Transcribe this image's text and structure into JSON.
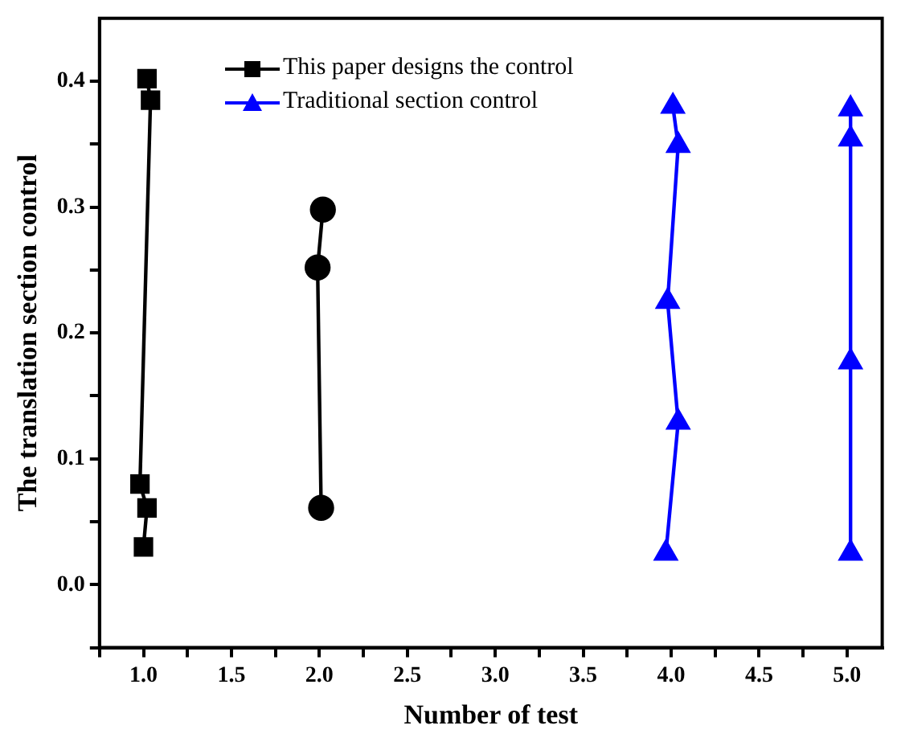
{
  "chart_data": {
    "type": "line",
    "xlabel": "Number of test",
    "ylabel": "The translation section control",
    "xlim": [
      0.75,
      5.2
    ],
    "ylim": [
      -0.05,
      0.45
    ],
    "xticks": [
      {
        "value": 0.75,
        "label": null
      },
      {
        "value": 1,
        "label": "1.0"
      },
      {
        "value": 1.25,
        "label": null
      },
      1.5,
      {
        "value": 1.75,
        "label": null
      },
      {
        "value": 2,
        "label": "2.0"
      },
      {
        "value": 2.25,
        "label": null
      },
      2.5,
      {
        "value": 2.75,
        "label": null
      },
      {
        "value": 3,
        "label": "3.0"
      },
      {
        "value": 3.25,
        "label": null
      },
      3.5,
      {
        "value": 3.75,
        "label": null
      },
      {
        "value": 4,
        "label": "4.0"
      },
      {
        "value": 4.25,
        "label": null
      },
      4.5,
      {
        "value": 4.75,
        "label": null
      },
      {
        "value": 5,
        "label": "5.0"
      }
    ],
    "yticks": [
      {
        "value": -0.05,
        "label": null
      },
      {
        "value": 0,
        "label": "0.0"
      },
      {
        "value": 0.05,
        "label": null
      },
      0.1,
      {
        "value": 0.15,
        "label": null
      },
      0.2,
      {
        "value": 0.25,
        "label": null
      },
      0.3,
      {
        "value": 0.35,
        "label": null
      },
      0.4
    ],
    "grid": false,
    "legend": "top left",
    "series": [
      {
        "name": "This paper designs the control",
        "color": "#000000",
        "marker": "square",
        "x": [
          1.02,
          1.04,
          0.98,
          1.02,
          1.0
        ],
        "values": [
          0.402,
          0.385,
          0.08,
          0.061,
          0.03
        ]
      },
      {
        "color": "#000000",
        "marker": "circle",
        "x": [
          2.02,
          1.99,
          2.01
        ],
        "values": [
          0.298,
          0.252,
          0.061
        ]
      },
      {
        "name": "Traditional section control",
        "color": "#0000ff",
        "marker": "triangle",
        "x": [
          4.01,
          4.04,
          3.98,
          4.04,
          3.97
        ],
        "values": [
          0.38,
          0.349,
          0.225,
          0.129,
          0.025
        ]
      },
      {
        "color": "#0000ff",
        "marker": "triangle",
        "x": [
          5.02,
          5.02,
          5.02,
          5.02
        ],
        "values": [
          0.378,
          0.354,
          0.177,
          0.025
        ]
      }
    ]
  }
}
